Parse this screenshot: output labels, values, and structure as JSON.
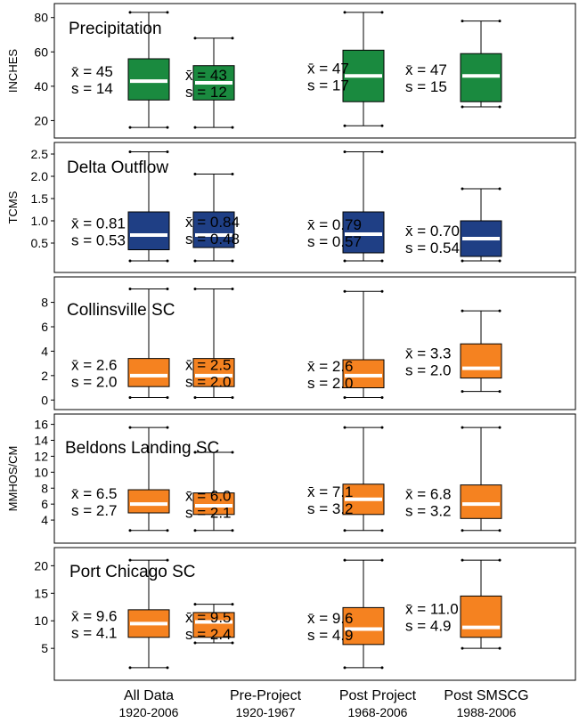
{
  "chart_data": [
    {
      "type": "box",
      "title": "Precipitation",
      "ylabel": "INCHES",
      "ylim": [
        14,
        84
      ],
      "yticks": [
        20,
        40,
        60,
        80
      ],
      "color": "#1a8a3f",
      "boxes": [
        {
          "min": 16,
          "q1": 32,
          "median": 43,
          "q3": 56,
          "max": 83,
          "mean_label": "x̄ = 45",
          "sd_label": "s = 14"
        },
        {
          "min": 16,
          "q1": 32,
          "median": 42,
          "q3": 52,
          "max": 68,
          "mean_label": "x̄ = 43",
          "sd_label": "s = 12"
        },
        {
          "min": 17,
          "q1": 31,
          "median": 46,
          "q3": 61,
          "max": 83,
          "mean_label": "x̄ = 47",
          "sd_label": "s = 17"
        },
        {
          "min": 28,
          "q1": 31,
          "median": 46,
          "q3": 59,
          "max": 78,
          "mean_label": "x̄ = 47",
          "sd_label": "s = 15"
        }
      ]
    },
    {
      "type": "box",
      "title": "Delta Outflow",
      "ylabel": "TCMS",
      "ylim": [
        0.0,
        2.6
      ],
      "yticks": [
        0.5,
        1.0,
        1.5,
        2.0,
        2.5
      ],
      "yticklabels": [
        "0.5",
        "1.0",
        "1.5",
        "2.0",
        "2.5"
      ],
      "color": "#1f3f85",
      "boxes": [
        {
          "min": 0.1,
          "q1": 0.35,
          "median": 0.68,
          "q3": 1.2,
          "max": 2.55,
          "mean_label": "x̄ = 0.81",
          "sd_label": "s = 0.53"
        },
        {
          "min": 0.1,
          "q1": 0.4,
          "median": 0.68,
          "q3": 1.2,
          "max": 2.05,
          "mean_label": "x̄ = 0.84",
          "sd_label": "s = 0.48"
        },
        {
          "min": 0.1,
          "q1": 0.28,
          "median": 0.7,
          "q3": 1.2,
          "max": 2.55,
          "mean_label": "x̄ = 0.79",
          "sd_label": "s = 0.57"
        },
        {
          "min": 0.1,
          "q1": 0.2,
          "median": 0.6,
          "q3": 1.0,
          "max": 1.72,
          "mean_label": "x̄ = 0.70",
          "sd_label": "s = 0.54"
        }
      ]
    },
    {
      "type": "box",
      "title": "Collinsville SC",
      "ylabel": "",
      "ylim": [
        -0.2,
        9.5
      ],
      "yticks": [
        0,
        2,
        4,
        6,
        8
      ],
      "color": "#f58220",
      "boxes": [
        {
          "min": 0.2,
          "q1": 1.1,
          "median": 2.0,
          "q3": 3.4,
          "max": 9.1,
          "mean_label": "x̄ = 2.6",
          "sd_label": "s = 2.0"
        },
        {
          "min": 0.2,
          "q1": 1.1,
          "median": 2.0,
          "q3": 3.4,
          "max": 9.1,
          "mean_label": "x̄ = 2.5",
          "sd_label": "s = 2.0"
        },
        {
          "min": 0.2,
          "q1": 1.0,
          "median": 2.0,
          "q3": 3.3,
          "max": 8.9,
          "mean_label": "x̄ = 2.6",
          "sd_label": "s = 2.0"
        },
        {
          "min": 0.7,
          "q1": 1.8,
          "median": 2.6,
          "q3": 4.6,
          "max": 7.3,
          "mean_label": "x̄ = 3.3",
          "sd_label": "s = 2.0"
        }
      ]
    },
    {
      "type": "box",
      "title": "Beldons Landing SC",
      "ylabel": "MMHOS/CM",
      "ylim": [
        2.0,
        16.4
      ],
      "yticks": [
        4,
        6,
        8,
        10,
        12,
        14,
        16
      ],
      "color": "#f58220",
      "boxes": [
        {
          "min": 2.7,
          "q1": 4.9,
          "median": 6.0,
          "q3": 7.8,
          "max": 15.6,
          "mean_label": "x̄ = 6.5",
          "sd_label": "s = 2.7"
        },
        {
          "min": 2.7,
          "q1": 4.7,
          "median": 5.8,
          "q3": 7.4,
          "max": 12.5,
          "mean_label": "x̄ = 6.0",
          "sd_label": "s = 2.1"
        },
        {
          "min": 2.7,
          "q1": 4.7,
          "median": 6.6,
          "q3": 8.5,
          "max": 15.6,
          "mean_label": "x̄ = 7.1",
          "sd_label": "s = 3.2"
        },
        {
          "min": 2.7,
          "q1": 4.2,
          "median": 6.0,
          "q3": 8.4,
          "max": 15.6,
          "mean_label": "x̄ = 6.8",
          "sd_label": "s = 3.2"
        }
      ]
    },
    {
      "type": "box",
      "title": "Port Chicago SC",
      "ylabel": "",
      "ylim": [
        0.5,
        22
      ],
      "yticks": [
        5,
        10,
        15,
        20
      ],
      "color": "#f58220",
      "boxes": [
        {
          "min": 1.5,
          "q1": 7.0,
          "median": 9.5,
          "q3": 12.0,
          "max": 21.0,
          "mean_label": "x̄ = 9.6",
          "sd_label": "s = 4.1"
        },
        {
          "min": 6.0,
          "q1": 7.0,
          "median": 9.8,
          "q3": 11.5,
          "max": 13.0,
          "mean_label": "x̄ = 9.5",
          "sd_label": "s = 2.4"
        },
        {
          "min": 1.5,
          "q1": 5.7,
          "median": 8.5,
          "q3": 12.4,
          "max": 21.0,
          "mean_label": "x̄ = 9.6",
          "sd_label": "s = 4.9"
        },
        {
          "min": 5.0,
          "q1": 7.0,
          "median": 8.8,
          "q3": 14.5,
          "max": 21.0,
          "mean_label": "x̄ = 11.0",
          "sd_label": "s = 4.9"
        }
      ]
    }
  ],
  "categories": [
    {
      "name": "All Data",
      "years": "1920-2006"
    },
    {
      "name": "Pre-Project",
      "years": "1920-1967"
    },
    {
      "name": "Post Project",
      "years": "1968-2006"
    },
    {
      "name": "Post SMSCG",
      "years": "1988-2006"
    }
  ]
}
